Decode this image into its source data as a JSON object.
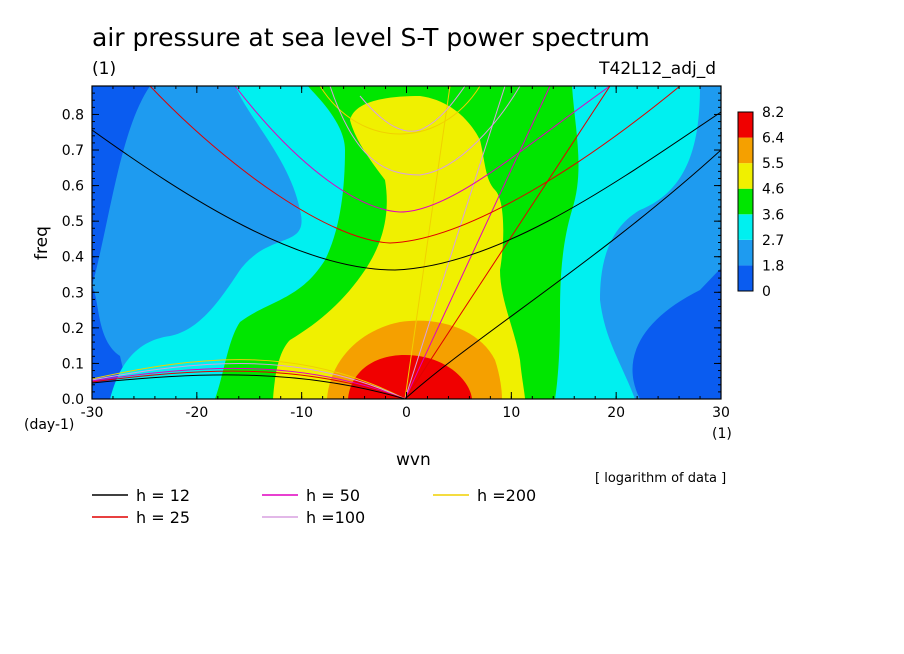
{
  "chart_data": {
    "type": "heatmap",
    "title": "air pressure at sea level S-T power spectrum",
    "subtitle_left": "(1)",
    "subtitle_right": "T42L12_adj_d",
    "xlabel": "wvn",
    "ylabel": "freq",
    "x_unit": "(1)",
    "y_unit": "(day-1)",
    "note": "[ logarithm of data ]",
    "xlim": [
      -30,
      30
    ],
    "ylim": [
      0,
      0.88
    ],
    "x_ticks": [
      -30,
      -20,
      -10,
      0,
      10,
      20,
      30
    ],
    "x_tick_labels": [
      "-30",
      "-20",
      "-10",
      "0",
      "10",
      "20",
      "30"
    ],
    "y_ticks": [
      0,
      0.1,
      0.2,
      0.3,
      0.4,
      0.5,
      0.6,
      0.7,
      0.8
    ],
    "y_tick_labels": [
      "0.0",
      "0.1",
      "0.2",
      "0.3",
      "0.4",
      "0.5",
      "0.6",
      "0.7",
      "0.8"
    ],
    "colorbar": {
      "levels": [
        "0",
        "1.8",
        "2.7",
        "3.6",
        "4.6",
        "5.5",
        "6.4",
        "8.2"
      ],
      "colors": [
        "#0a5cf0",
        "#1e9bf0",
        "#00f0f0",
        "#00e600",
        "#f0f000",
        "#f5a000",
        "#f00000"
      ]
    },
    "dispersion_curves": {
      "legend": [
        {
          "label": "h = 12",
          "color": "#000000"
        },
        {
          "label": "h = 25",
          "color": "#e00000"
        },
        {
          "label": "h = 50",
          "color": "#e000c0"
        },
        {
          "label": "h =100",
          "color": "#d8a0e0"
        },
        {
          "label": "h =200",
          "color": "#f0d000"
        }
      ],
      "equivalent_depths": [
        12,
        25,
        50,
        100,
        200
      ]
    }
  }
}
